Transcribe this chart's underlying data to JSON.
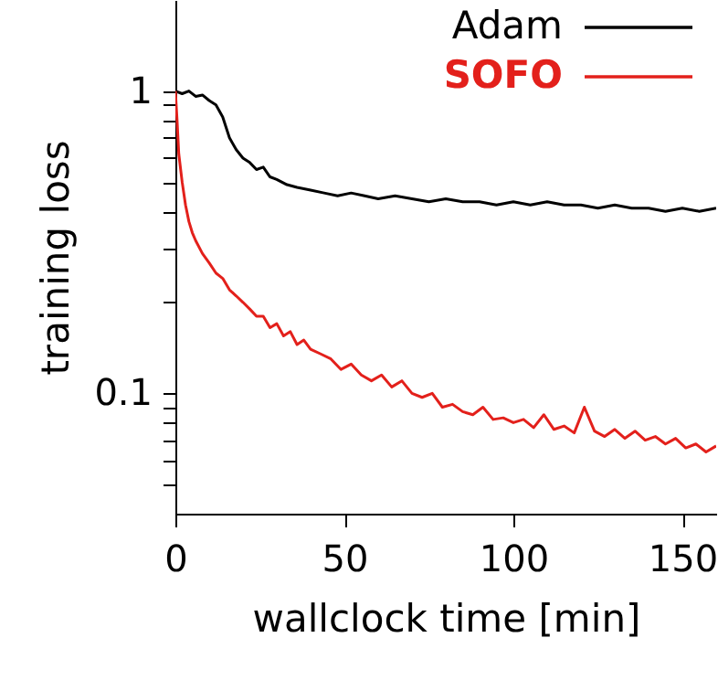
{
  "chart_data": {
    "type": "line",
    "xlabel": "wallclock time [min]",
    "ylabel": "training loss",
    "xlim": [
      0,
      160
    ],
    "xticks": [
      0,
      50,
      100,
      150
    ],
    "ylim": [
      0.04,
      2
    ],
    "log": "y",
    "yticks": [
      1,
      0.1,
      {
        "value": 0.9,
        "label": null
      },
      {
        "value": 0.8,
        "label": null
      },
      {
        "value": 0.7,
        "label": null
      },
      {
        "value": 0.6,
        "label": null
      },
      {
        "value": 0.5,
        "label": null
      },
      {
        "value": 0.4,
        "label": null
      },
      {
        "value": 0.3,
        "label": null
      },
      {
        "value": 0.2,
        "label": null
      },
      {
        "value": 0.09,
        "label": null
      },
      {
        "value": 0.08,
        "label": null
      },
      {
        "value": 0.07,
        "label": null
      },
      {
        "value": 0.06,
        "label": null
      },
      {
        "value": 0.05,
        "label": null
      }
    ],
    "grid": false,
    "legend": "top right",
    "marker": "none",
    "line_style": "solid",
    "series": [
      {
        "name": "Adam",
        "color": "#000000",
        "x": [
          0,
          2,
          4,
          6,
          8,
          10,
          12,
          14,
          16,
          18,
          20,
          22,
          24,
          26,
          28,
          30,
          33,
          36,
          40,
          44,
          48,
          52,
          56,
          60,
          65,
          70,
          75,
          80,
          85,
          90,
          95,
          100,
          105,
          110,
          115,
          120,
          125,
          130,
          135,
          140,
          145,
          150,
          155,
          160
        ],
        "values": [
          1.0,
          0.98,
          1.0,
          0.96,
          0.97,
          0.93,
          0.9,
          0.82,
          0.7,
          0.64,
          0.6,
          0.58,
          0.55,
          0.56,
          0.52,
          0.51,
          0.49,
          0.48,
          0.47,
          0.46,
          0.45,
          0.46,
          0.45,
          0.44,
          0.45,
          0.44,
          0.43,
          0.44,
          0.43,
          0.43,
          0.42,
          0.43,
          0.42,
          0.43,
          0.42,
          0.42,
          0.41,
          0.42,
          0.41,
          0.41,
          0.4,
          0.41,
          0.4,
          0.41
        ]
      },
      {
        "name": "SOFO",
        "color": "#e3201b",
        "x": [
          0,
          0.5,
          1,
          2,
          3,
          4,
          5,
          6,
          8,
          10,
          12,
          14,
          16,
          18,
          20,
          22,
          24,
          26,
          28,
          30,
          32,
          34,
          36,
          38,
          40,
          43,
          46,
          49,
          52,
          55,
          58,
          61,
          64,
          67,
          70,
          73,
          76,
          79,
          82,
          85,
          88,
          91,
          94,
          97,
          100,
          103,
          106,
          109,
          112,
          115,
          118,
          121,
          124,
          127,
          130,
          133,
          136,
          139,
          142,
          145,
          148,
          151,
          154,
          157,
          160
        ],
        "values": [
          1.0,
          0.8,
          0.62,
          0.5,
          0.42,
          0.37,
          0.34,
          0.32,
          0.29,
          0.27,
          0.25,
          0.24,
          0.22,
          0.21,
          0.2,
          0.19,
          0.18,
          0.18,
          0.165,
          0.17,
          0.155,
          0.16,
          0.145,
          0.15,
          0.14,
          0.135,
          0.13,
          0.12,
          0.125,
          0.115,
          0.11,
          0.115,
          0.105,
          0.11,
          0.1,
          0.097,
          0.1,
          0.09,
          0.092,
          0.087,
          0.085,
          0.09,
          0.082,
          0.083,
          0.08,
          0.082,
          0.077,
          0.085,
          0.076,
          0.078,
          0.074,
          0.09,
          0.075,
          0.072,
          0.076,
          0.071,
          0.075,
          0.07,
          0.072,
          0.068,
          0.071,
          0.066,
          0.068,
          0.064,
          0.067
        ]
      }
    ]
  }
}
